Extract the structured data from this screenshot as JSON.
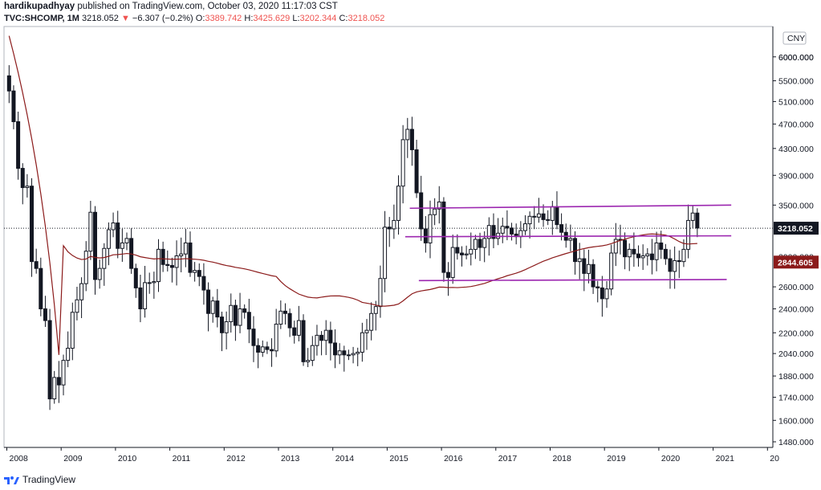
{
  "header": {
    "author": "hardikupadhyay",
    "published_text": "published on TradingView.com, October 03, 2020 11:17:03 CST",
    "symbol": "TVC:SHCOMP, 1M",
    "last": "3218.052",
    "change_arrow": "▼",
    "change": "−6.307 (−0.2%)",
    "open_label": "O:",
    "open": "3389.742",
    "high_label": "H:",
    "high": "3425.629",
    "low_label": "L:",
    "low": "3202.344",
    "close_label": "C:",
    "close": "3218.052"
  },
  "footer": {
    "brand": "TradingView"
  },
  "colors": {
    "up": "#131722",
    "down": "#131722",
    "up_fill": "#ffffff",
    "ma": "#8b1a1a",
    "channel": "#9c27b0",
    "last_price_tag": "#131722",
    "ma_tag": "#8b1a1a",
    "grid": "#d9d9d9"
  },
  "chart_data": {
    "type": "candlestick",
    "currency_label": "CNY",
    "x_ticks": [
      "2008",
      "2009",
      "2010",
      "2011",
      "2012",
      "2013",
      "2014",
      "2015",
      "2016",
      "2017",
      "2018",
      "2019",
      "2020",
      "2021",
      "20"
    ],
    "y_ticks": [
      "6000.000",
      "5500.000",
      "5100.000",
      "4700.000",
      "4300.000",
      "3900.000",
      "3500.000",
      "2600.000",
      "2400.000",
      "2200.000",
      "2040.000",
      "1880.000",
      "1740.000",
      "1600.000",
      "1480.000"
    ],
    "y_partial_ticks": [
      "6000.000",
      "2900.000"
    ],
    "y_scale": "log",
    "y_range": [
      1450,
      6700
    ],
    "last_price": 3218.052,
    "last_price_label": "3218.052",
    "ma_value": 2844.605,
    "ma_label": "2844.605",
    "monthly_closes_start": "2008-01",
    "monthly_closes": [
      5300,
      4740,
      4000,
      3730,
      3750,
      2850,
      2780,
      2400,
      2300,
      1730,
      1870,
      1820,
      1990,
      2080,
      2370,
      2480,
      2630,
      2960,
      3410,
      2670,
      2780,
      2990,
      3200,
      3280,
      2990,
      3050,
      3100,
      2780,
      2590,
      2400,
      2640,
      2640,
      2650,
      2980,
      2820,
      2810,
      2790,
      2910,
      2930,
      3050,
      2740,
      2760,
      2700,
      2570,
      2360,
      2470,
      2330,
      2200,
      2290,
      2430,
      2260,
      2400,
      2370,
      2230,
      2100,
      2050,
      2090,
      2070,
      2060,
      2270,
      2380,
      2360,
      2240,
      2180,
      2300,
      1980,
      1990,
      2100,
      2180,
      2140,
      2220,
      2120,
      2030,
      2060,
      2030,
      2030,
      2040,
      2050,
      2200,
      2220,
      2360,
      2420,
      2680,
      3230,
      3210,
      3310,
      3750,
      4440,
      4610,
      4280,
      3660,
      3210,
      3050,
      3380,
      3450,
      3540,
      2740,
      2690,
      3000,
      2940,
      2920,
      2930,
      2980,
      3090,
      3000,
      3100,
      3250,
      3100,
      3160,
      3240,
      3220,
      3150,
      3120,
      3190,
      3270,
      3360,
      3350,
      3390,
      3320,
      3310,
      3480,
      3260,
      3170,
      3080,
      3100,
      2850,
      2880,
      2730,
      2820,
      2600,
      2590,
      2490,
      2580,
      2940,
      3090,
      3080,
      2900,
      2980,
      2930,
      2890,
      2910,
      2930,
      2870,
      3050,
      2980,
      2880,
      2750,
      2860,
      2850,
      2980,
      3310,
      3400,
      3220
    ],
    "ma_period": 60,
    "channel_lines": [
      {
        "from": [
          "2015-06",
          3460
        ],
        "to": [
          "2021-05",
          3500
        ]
      },
      {
        "from": [
          "2015-05",
          3120
        ],
        "to": [
          "2021-05",
          3130
        ]
      },
      {
        "from": [
          "2015-08",
          2660
        ],
        "to": [
          "2021-04",
          2670
        ]
      }
    ]
  }
}
